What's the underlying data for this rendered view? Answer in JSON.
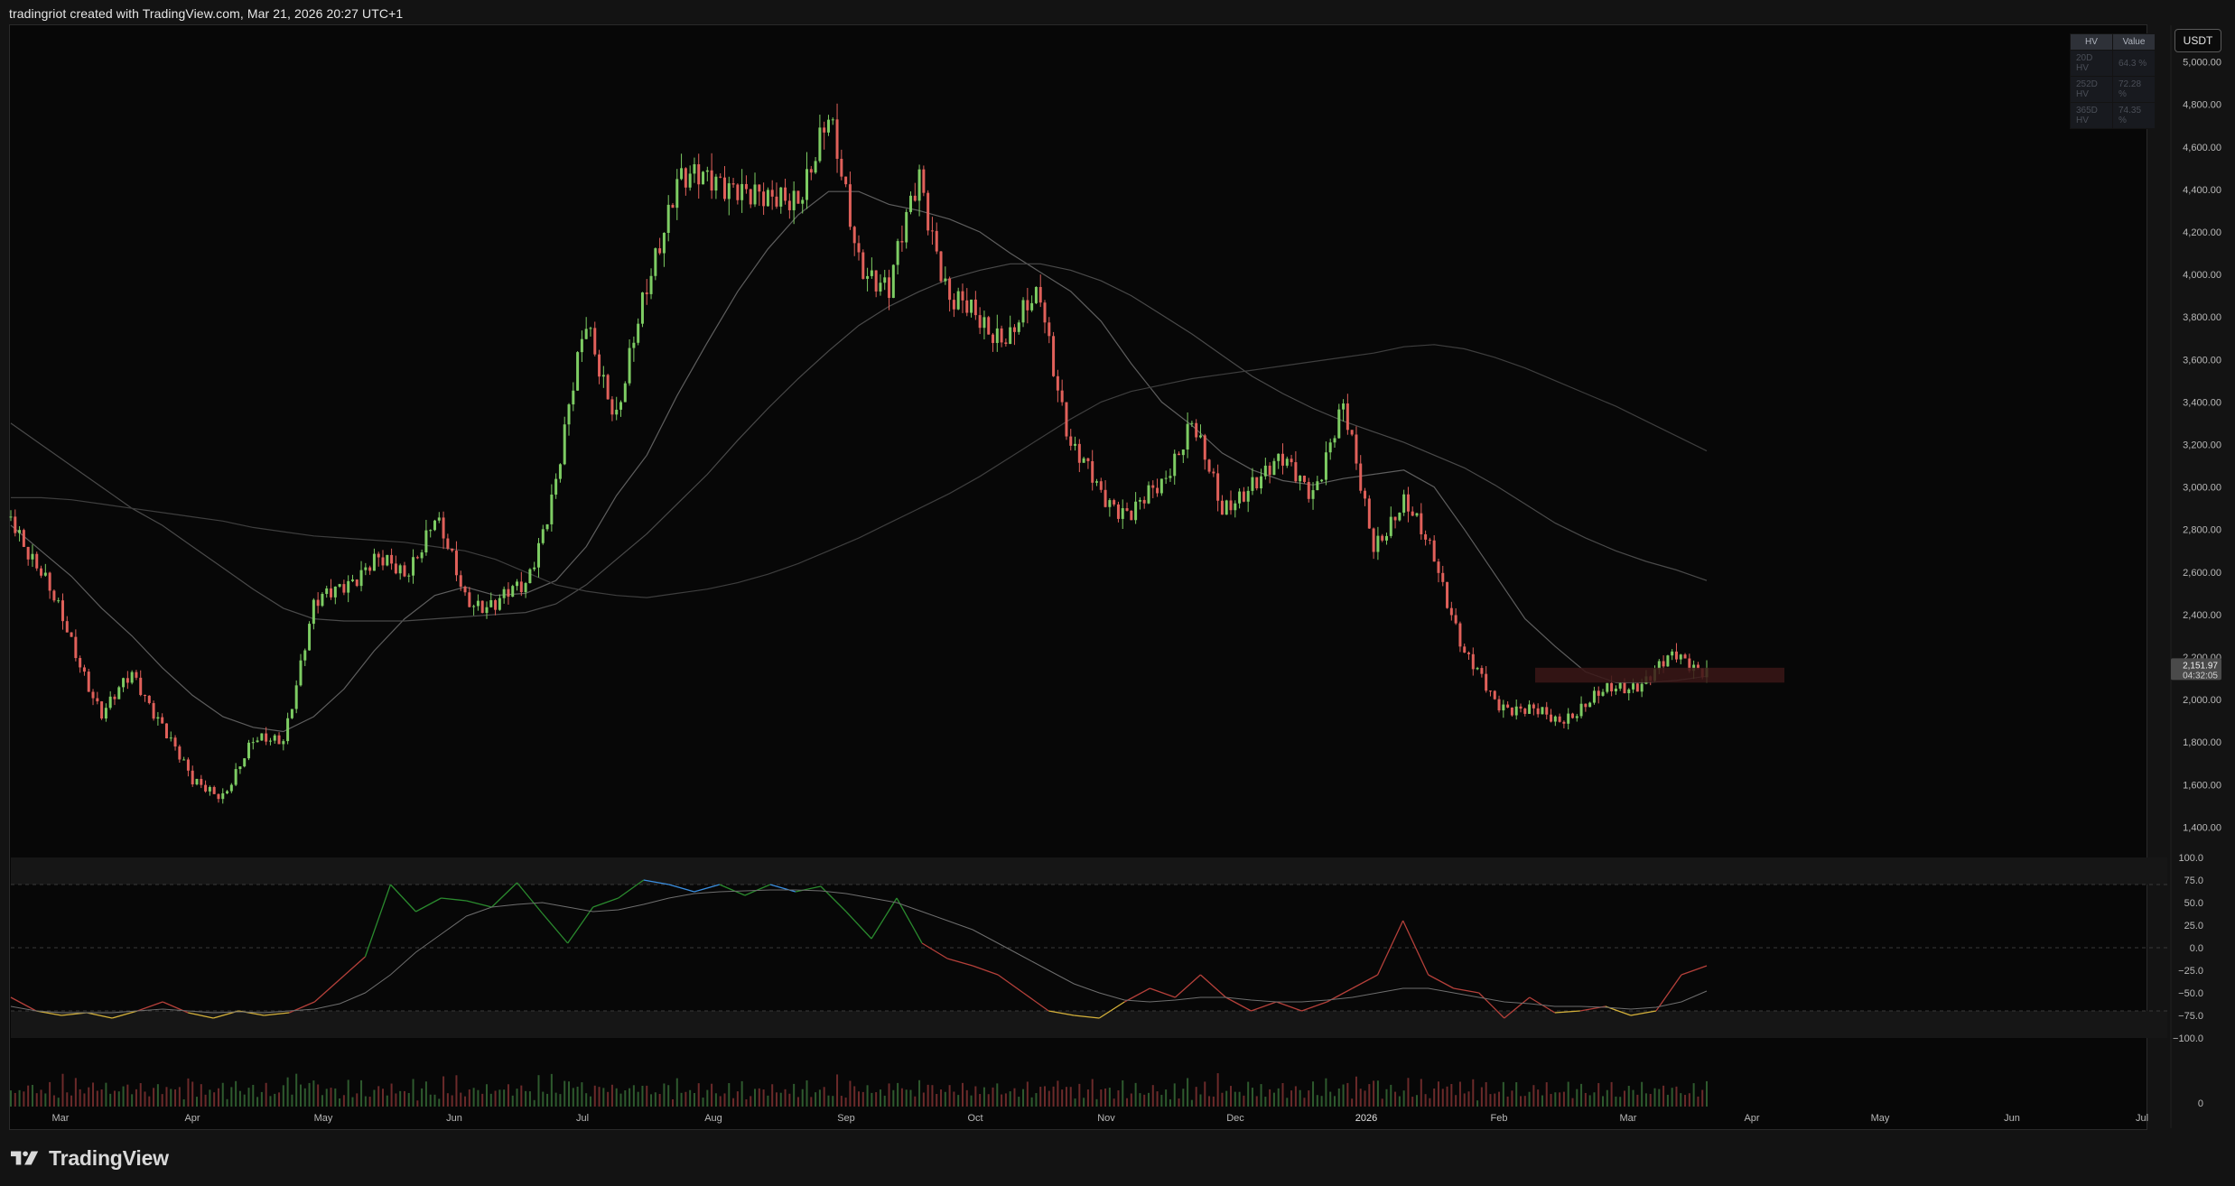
{
  "header": {
    "text": "tradingriot created with TradingView.com, Mar 21, 2026 20:27 UTC+1"
  },
  "footer": {
    "logo_text": "TradingView"
  },
  "currency_button": "USDT",
  "hv_table": {
    "headers": [
      "HV",
      "Value"
    ],
    "rows": [
      [
        "20D HV",
        "64.3 %"
      ],
      [
        "252D HV",
        "72.28 %"
      ],
      [
        "365D HV",
        "74.35 %"
      ]
    ]
  },
  "chart_data": [
    {
      "type": "candlestick",
      "price_axis_ticks": [
        "5,000.00",
        "4,800.00",
        "4,600.00",
        "4,400.00",
        "4,200.00",
        "4,000.00",
        "3,800.00",
        "3,600.00",
        "3,400.00",
        "3,200.00",
        "3,000.00",
        "2,800.00",
        "2,600.00",
        "2,400.00",
        "2,200.00",
        "2,000.00",
        "1,800.00",
        "1,600.00",
        "1,400.00"
      ],
      "ylim": [
        1300,
        5100
      ],
      "x_ticks": [
        "Mar",
        "Apr",
        "May",
        "Jun",
        "Jul",
        "Aug",
        "Sep",
        "Oct",
        "Nov",
        "Dec",
        "2026",
        "Feb",
        "Mar",
        "Apr",
        "May",
        "Jun",
        "Jul"
      ],
      "last_price": "2,151.97",
      "countdown": "04:32:05",
      "weekly_closes": [
        2850,
        2620,
        2250,
        1950,
        2100,
        1900,
        1600,
        1560,
        1790,
        1830,
        2420,
        2560,
        2640,
        2600,
        2850,
        2480,
        2450,
        2530,
        3040,
        3760,
        3350,
        3900,
        4500,
        4400,
        4460,
        4300,
        4400,
        4700,
        4100,
        3900,
        4500,
        3850,
        3800,
        3700,
        3900,
        3200,
        2950,
        2900,
        2980,
        3350,
        2850,
        3050,
        3100,
        3000,
        3350,
        2750,
        2900,
        2700,
        2200,
        2000,
        1950,
        1900,
        1980,
        2050,
        2100,
        2200,
        2150
      ],
      "moving_averages": [
        {
          "color": "#5e5e5e",
          "values": [
            2820,
            2700,
            2580,
            2430,
            2300,
            2150,
            2020,
            1920,
            1870,
            1850,
            1920,
            2050,
            2230,
            2380,
            2490,
            2530,
            2490,
            2500,
            2560,
            2720,
            2960,
            3150,
            3430,
            3680,
            3920,
            4120,
            4280,
            4390,
            4390,
            4330,
            4300,
            4260,
            4200,
            4100,
            4010,
            3920,
            3780,
            3580,
            3400,
            3290,
            3160,
            3080,
            3030,
            3010,
            3040,
            3060,
            3080,
            3000,
            2800,
            2590,
            2380,
            2250,
            2130,
            2080,
            2080,
            2090,
            2110
          ]
        },
        {
          "color": "#4a4a4a",
          "values": [
            3300,
            3200,
            3100,
            3000,
            2900,
            2820,
            2720,
            2620,
            2520,
            2430,
            2380,
            2370,
            2370,
            2370,
            2380,
            2390,
            2400,
            2410,
            2450,
            2540,
            2660,
            2780,
            2920,
            3060,
            3220,
            3370,
            3510,
            3640,
            3760,
            3850,
            3920,
            3980,
            4020,
            4050,
            4050,
            4020,
            3970,
            3900,
            3810,
            3720,
            3620,
            3520,
            3440,
            3370,
            3310,
            3260,
            3210,
            3150,
            3090,
            3010,
            2920,
            2830,
            2760,
            2700,
            2650,
            2610,
            2560
          ]
        },
        {
          "color": "#3e3e3e",
          "values": [
            2950,
            2950,
            2940,
            2920,
            2900,
            2880,
            2860,
            2840,
            2810,
            2790,
            2770,
            2760,
            2750,
            2740,
            2720,
            2700,
            2660,
            2600,
            2540,
            2510,
            2490,
            2480,
            2500,
            2520,
            2550,
            2590,
            2640,
            2700,
            2760,
            2830,
            2900,
            2970,
            3050,
            3140,
            3230,
            3320,
            3400,
            3450,
            3480,
            3510,
            3530,
            3550,
            3570,
            3590,
            3610,
            3630,
            3660,
            3670,
            3650,
            3610,
            3560,
            3500,
            3440,
            3380,
            3310,
            3240,
            3170
          ]
        }
      ]
    },
    {
      "type": "line",
      "name": "oscillator",
      "axis_ticks": [
        "100.0",
        "75.0",
        "50.0",
        "25.0",
        "0.0",
        "−25.0",
        "−50.0",
        "−75.0",
        "−100.0"
      ],
      "ylim": [
        -100,
        100
      ],
      "series": [
        {
          "name": "",
          "values": [
            -55,
            -70,
            -75,
            -72,
            -78,
            -70,
            -60,
            -72,
            -78,
            -70,
            -75,
            -72,
            -60,
            -35,
            -10,
            70,
            40,
            55,
            52,
            45,
            72,
            38,
            5,
            45,
            55,
            75,
            70,
            62,
            70,
            58,
            70,
            62,
            68,
            40,
            10,
            55,
            5,
            -12,
            -20,
            -30,
            -50,
            -70,
            -75,
            -78,
            -60,
            -45,
            -55,
            -30,
            -55,
            -70,
            -60,
            -70,
            -60,
            -45,
            -30,
            30,
            -30,
            -45,
            -50,
            -78,
            -55,
            -72,
            -70,
            -65,
            -75,
            -70,
            -30,
            -20
          ]
        },
        {
          "name": "",
          "values": [
            -65,
            -70,
            -72,
            -72,
            -72,
            -70,
            -68,
            -70,
            -72,
            -71,
            -72,
            -70,
            -68,
            -62,
            -50,
            -30,
            -5,
            15,
            35,
            45,
            48,
            50,
            45,
            40,
            42,
            48,
            55,
            60,
            62,
            63,
            64,
            64,
            63,
            60,
            55,
            50,
            40,
            30,
            20,
            5,
            -10,
            -25,
            -40,
            -50,
            -58,
            -60,
            -58,
            -55,
            -55,
            -58,
            -60,
            -60,
            -58,
            -55,
            -50,
            -45,
            -45,
            -50,
            -55,
            -60,
            -62,
            -65,
            -65,
            -66,
            -68,
            -66,
            -60,
            -48
          ]
        }
      ]
    },
    {
      "type": "bar",
      "name": "volume",
      "axis_ticks": [
        "0"
      ]
    }
  ]
}
